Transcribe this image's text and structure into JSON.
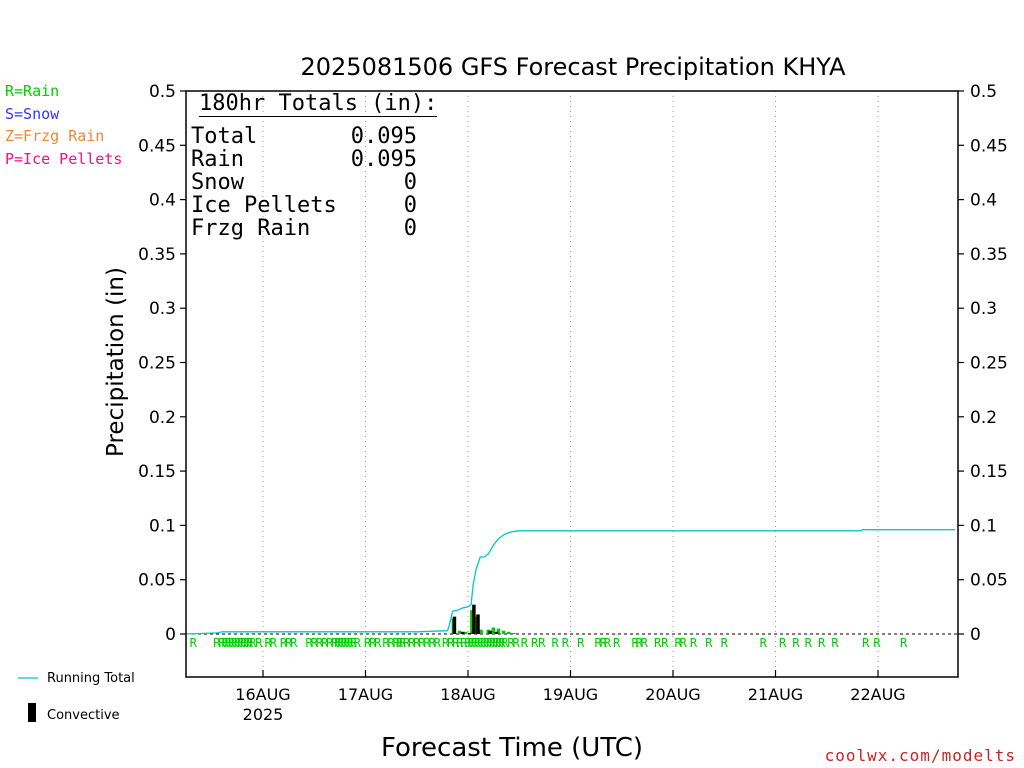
{
  "chart_data": {
    "type": "bar",
    "title": "2025081506 GFS Forecast Precipitation KHYA",
    "ylabel": "Precipitation (in)",
    "xlabel": "Forecast Time (UTC)",
    "ylim": [
      0,
      0.5
    ],
    "y_ticks": [
      "0",
      "0.05",
      "0.1",
      "0.15",
      "0.2",
      "0.25",
      "0.3",
      "0.35",
      "0.4",
      "0.45",
      "0.5"
    ],
    "x_ticks": [
      {
        "day": 16.0,
        "label": "16AUG",
        "sub": "2025"
      },
      {
        "day": 17.0,
        "label": "17AUG"
      },
      {
        "day": 18.0,
        "label": "18AUG"
      },
      {
        "day": 19.0,
        "label": "19AUG"
      },
      {
        "day": 20.0,
        "label": "20AUG"
      },
      {
        "day": 21.0,
        "label": "21AUG"
      },
      {
        "day": 22.0,
        "label": "22AUG"
      }
    ],
    "x_range_day": [
      15.25,
      22.75
    ],
    "grid": "vertical-dotted",
    "series": [
      {
        "name": "Running Total",
        "kind": "line",
        "color": "#00c8c8",
        "points": [
          [
            15.25,
            0.0
          ],
          [
            15.56,
            0.001
          ],
          [
            15.6,
            0.002
          ],
          [
            15.7,
            0.002
          ],
          [
            16.5,
            0.002
          ],
          [
            17.5,
            0.002
          ],
          [
            17.8,
            0.003
          ],
          [
            17.82,
            0.009
          ],
          [
            17.85,
            0.021
          ],
          [
            17.9,
            0.022
          ],
          [
            17.95,
            0.024
          ],
          [
            18.0,
            0.025
          ],
          [
            18.03,
            0.027
          ],
          [
            18.05,
            0.045
          ],
          [
            18.08,
            0.06
          ],
          [
            18.12,
            0.071
          ],
          [
            18.16,
            0.071
          ],
          [
            18.2,
            0.074
          ],
          [
            18.25,
            0.082
          ],
          [
            18.3,
            0.088
          ],
          [
            18.36,
            0.092
          ],
          [
            18.42,
            0.094
          ],
          [
            18.5,
            0.095
          ],
          [
            19.0,
            0.095
          ],
          [
            20.0,
            0.095
          ],
          [
            21.0,
            0.095
          ],
          [
            21.83,
            0.095
          ],
          [
            21.85,
            0.096
          ],
          [
            22.75,
            0.096
          ]
        ]
      },
      {
        "name": "Rain",
        "kind": "bar",
        "color": "#00cc00",
        "bars": [
          [
            17.86,
            0.014
          ],
          [
            17.92,
            0.003
          ],
          [
            17.98,
            0.002
          ],
          [
            18.04,
            0.022
          ],
          [
            18.08,
            0.016
          ],
          [
            18.13,
            0.004
          ],
          [
            18.2,
            0.004
          ],
          [
            18.25,
            0.006
          ],
          [
            18.3,
            0.005
          ],
          [
            18.35,
            0.003
          ],
          [
            18.4,
            0.002
          ],
          [
            18.45,
            0.001
          ]
        ]
      },
      {
        "name": "Convective",
        "kind": "bar",
        "color": "#000000",
        "bars": [
          [
            17.87,
            0.016
          ],
          [
            17.95,
            0.002
          ],
          [
            18.02,
            0.001
          ],
          [
            18.06,
            0.027
          ],
          [
            18.1,
            0.018
          ],
          [
            18.22,
            0.003
          ],
          [
            18.28,
            0.002
          ]
        ]
      }
    ],
    "ptype_markers": {
      "label": "R",
      "color": "#00cc00",
      "days": [
        15.32,
        15.55,
        15.6,
        15.63,
        15.66,
        15.69,
        15.72,
        15.75,
        15.78,
        15.81,
        15.84,
        15.87,
        15.9,
        15.96,
        16.05,
        16.1,
        16.2,
        16.25,
        16.3,
        16.45,
        16.5,
        16.55,
        16.6,
        16.65,
        16.7,
        16.73,
        16.76,
        16.79,
        16.82,
        16.85,
        16.88,
        16.92,
        17.02,
        17.07,
        17.12,
        17.2,
        17.25,
        17.3,
        17.33,
        17.36,
        17.4,
        17.45,
        17.5,
        17.55,
        17.6,
        17.65,
        17.7,
        17.78,
        17.83,
        17.88,
        17.92,
        17.96,
        18.0,
        18.03,
        18.06,
        18.09,
        18.12,
        18.15,
        18.18,
        18.21,
        18.24,
        18.27,
        18.3,
        18.33,
        18.36,
        18.42,
        18.47,
        18.55,
        18.65,
        18.72,
        18.85,
        18.95,
        19.1,
        19.27,
        19.32,
        19.36,
        19.45,
        19.63,
        19.67,
        19.72,
        19.85,
        19.92,
        20.05,
        20.1,
        20.2,
        20.35,
        20.5,
        20.88,
        21.07,
        21.2,
        21.32,
        21.45,
        21.58,
        21.88,
        21.99,
        22.25
      ]
    },
    "legend": [
      {
        "text": "R=Rain",
        "color": "#00cc00"
      },
      {
        "text": "S=Snow",
        "color": "#3333ff"
      },
      {
        "text": "Z=Frzg Rain",
        "color": "#ee8833"
      },
      {
        "text": "P=Ice Pellets",
        "color": "#ee1188"
      }
    ],
    "bottom_legend": {
      "running_total": "Running Total",
      "convective": "Convective"
    },
    "totals": {
      "title": "180hr Totals (in):",
      "rows": [
        {
          "label": "Total",
          "value": "0.095"
        },
        {
          "label": "Rain",
          "value": "0.095"
        },
        {
          "label": "Snow",
          "value": "0"
        },
        {
          "label": "Ice Pellets",
          "value": "0"
        },
        {
          "label": "Frzg Rain",
          "value": "0"
        }
      ]
    },
    "watermark": "coolwx.com/modelts"
  }
}
